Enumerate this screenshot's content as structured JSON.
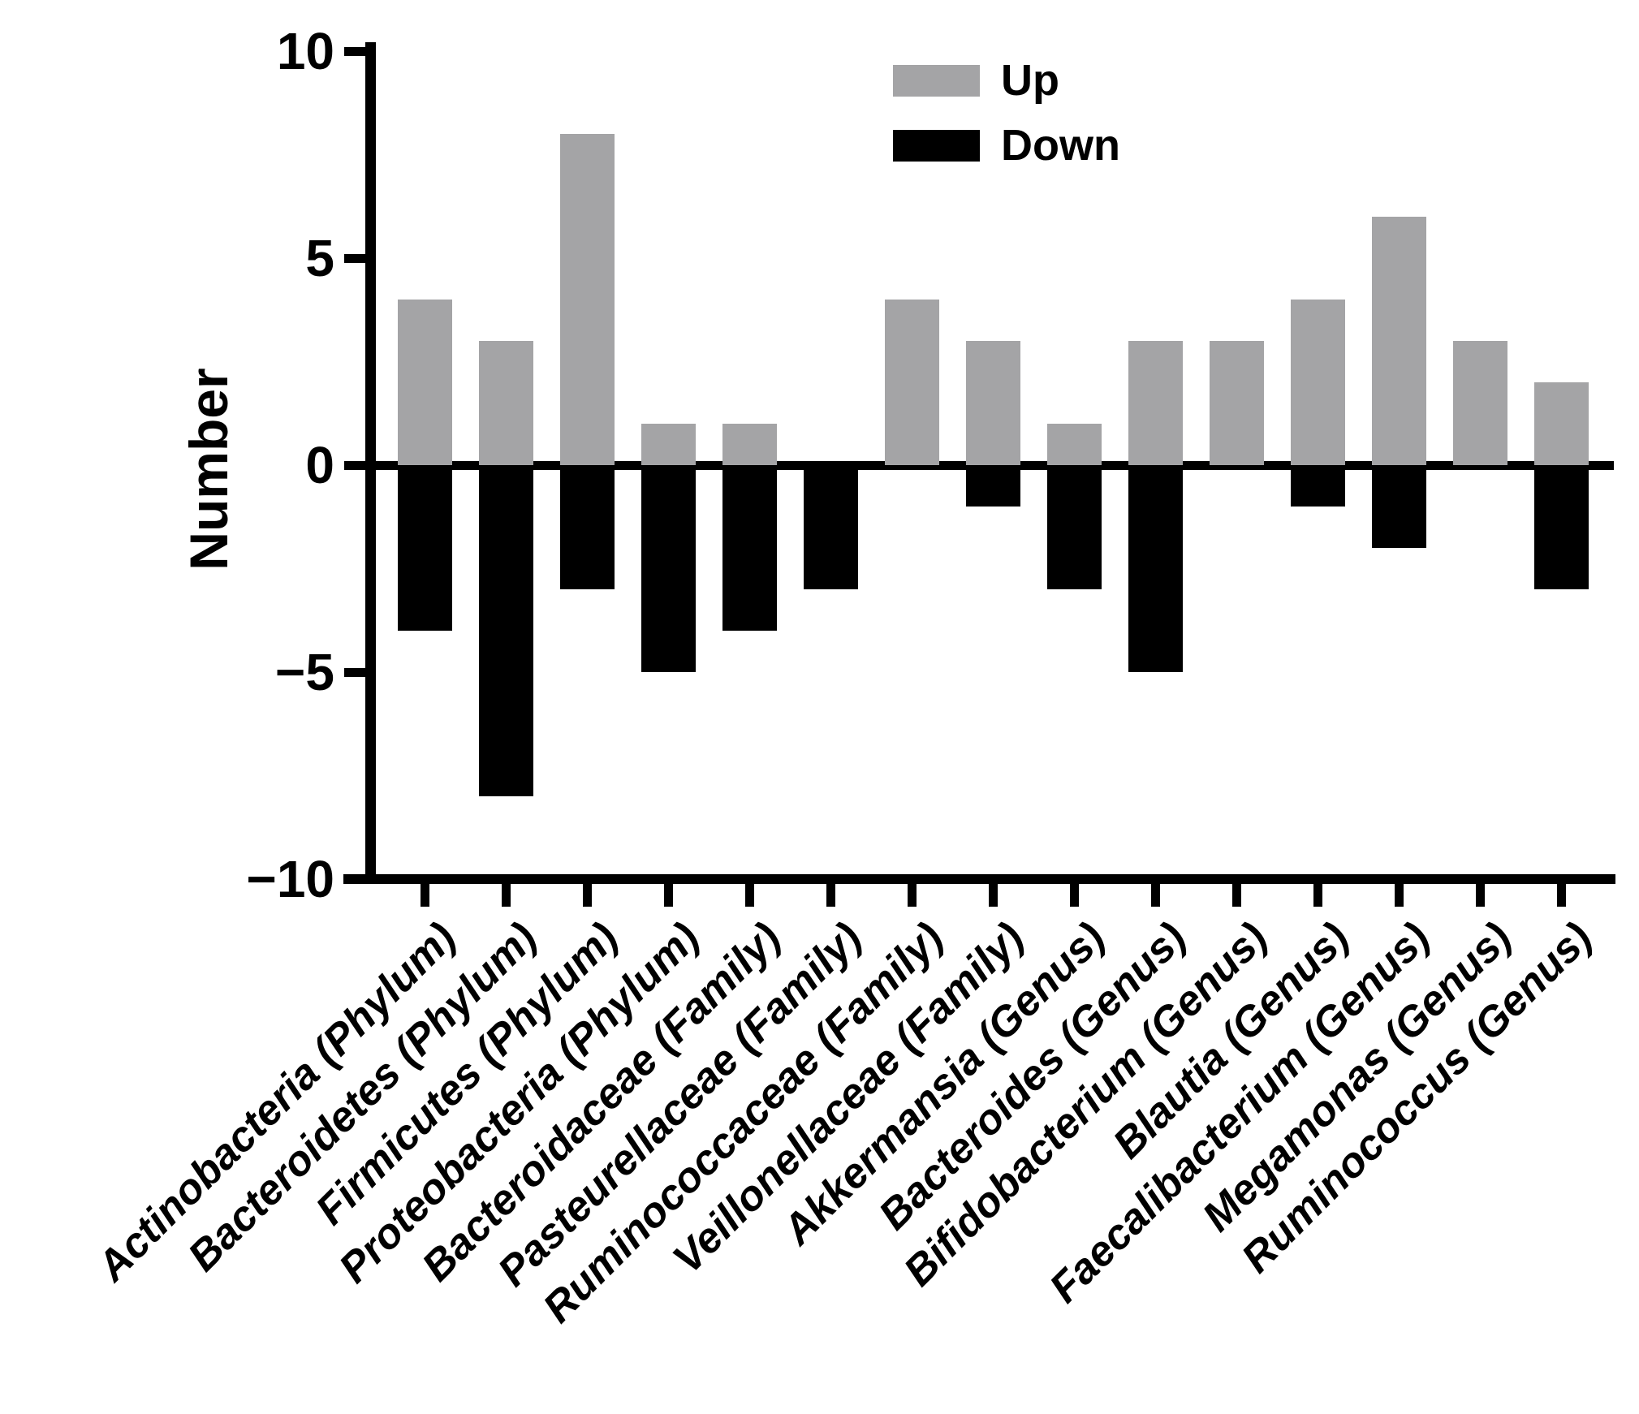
{
  "legend": {
    "up_label": "Up",
    "down_label": "Down",
    "up_color": "#A4A4A6",
    "down_color": "#000000"
  },
  "y_axis": {
    "title": "Number",
    "tick_labels": [
      "10",
      "5",
      "0",
      "−5",
      "−10"
    ],
    "tick_values": [
      10,
      5,
      0,
      -5,
      -10
    ]
  },
  "chart_data": {
    "type": "bar",
    "title": "",
    "xlabel": "",
    "ylabel": "Number",
    "ylim": [
      -10,
      10
    ],
    "yticks": [
      10,
      5,
      0,
      -5,
      -10
    ],
    "grid": false,
    "legend_position": "top-right",
    "legend_entries": [
      "Up",
      "Down"
    ],
    "categories": [
      "Actinobacteria (Phylum)",
      "Bacteroidetes (Phylum)",
      "Firmicutes (Phylum)",
      "Proteobacteria (Phylum)",
      "Bacteroidaceae (Family)",
      "Pasteurellaceae (Family)",
      "Ruminococcaceae (Family)",
      "Veillonellaceae (Family)",
      "Akkermansia (Genus)",
      "Bacteroides (Genus)",
      "Bifidobacterium (Genus)",
      "Blautia (Genus)",
      "Faecalibacterium (Genus)",
      "Megamonas (Genus)",
      "Ruminococcus (Genus)"
    ],
    "series": [
      {
        "name": "Up",
        "color": "#A4A4A6",
        "values": [
          4,
          3,
          8,
          1,
          1,
          0,
          4,
          3,
          1,
          3,
          3,
          4,
          6,
          3,
          2
        ]
      },
      {
        "name": "Down",
        "color": "#000000",
        "values": [
          -4,
          -8,
          -3,
          -5,
          -4,
          -3,
          0,
          -1,
          -3,
          -5,
          0,
          -1,
          -2,
          0,
          -3
        ]
      }
    ]
  }
}
